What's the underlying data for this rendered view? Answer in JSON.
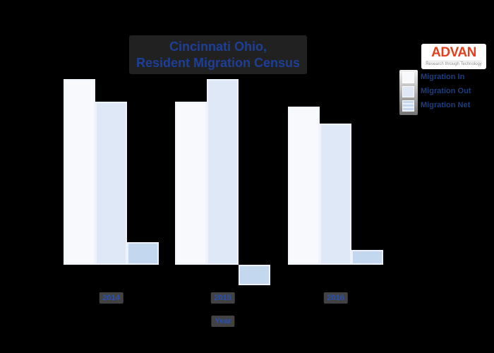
{
  "title": {
    "line1": "Cincinnati Ohio,",
    "line2": "Resident Migration Census"
  },
  "xlabel": "Year",
  "legend": {
    "items": [
      "Migration In",
      "Migration Out",
      "Migration Net"
    ]
  },
  "logo": {
    "brand": "ADVAN",
    "tagline": "Research through Technology",
    "brand_color": "#e2401f"
  },
  "colors": {
    "migration_in": "#f7f9fd",
    "migration_out": "#dfe8f6",
    "migration_net": "#c3d7ee",
    "bar_edge": "#eef2fb",
    "title_text": "#1d3f97",
    "axis_text": "#2a4fae",
    "legend_text": "#1e3d7e",
    "background": "#000000"
  },
  "chart_data": {
    "type": "bar",
    "categories": [
      "2014",
      "2015",
      "2016"
    ],
    "series": [
      {
        "name": "Migration In",
        "values": [
          100,
          88,
          85
        ]
      },
      {
        "name": "Migration Out",
        "values": [
          88,
          100,
          76
        ]
      },
      {
        "name": "Migration Net",
        "values": [
          12,
          -11,
          8
        ]
      }
    ],
    "title": "Cincinnati Ohio, Resident Migration Census",
    "xlabel": "Year",
    "ylabel": "",
    "units": "relative scale (no y-axis labels visible in image)",
    "ylim": [
      -15,
      105
    ],
    "grid": false,
    "legend_position": "upper right",
    "notes": "Net = In - Out; 2015 net bar extends below baseline (negative)."
  }
}
